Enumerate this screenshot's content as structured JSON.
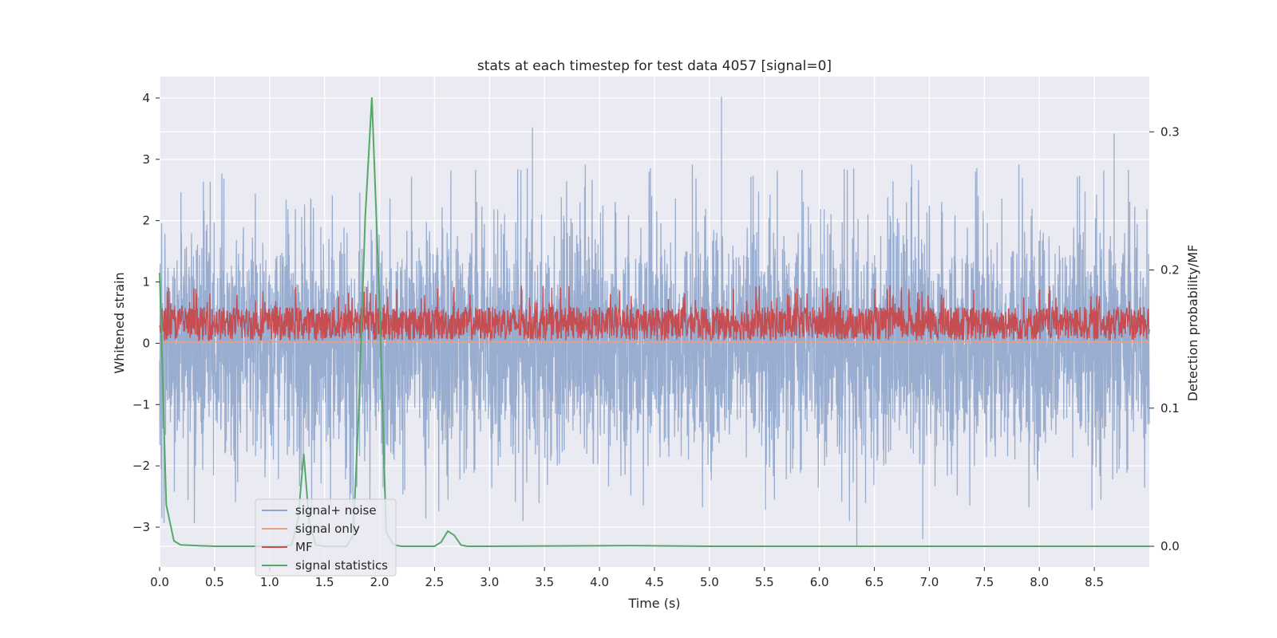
{
  "chart_data": {
    "type": "line",
    "title": "stats at each timestep for test data 4057 [signal=0]",
    "xlabel": "Time (s)",
    "ylabel": "Whitened strain",
    "y2label": "Detection probability/MF",
    "xlim": [
      0.0,
      9.0
    ],
    "ylim": [
      -3.65,
      4.35
    ],
    "y2lim": [
      -0.015,
      0.34
    ],
    "xticks": [
      0.0,
      0.5,
      1.0,
      1.5,
      2.0,
      2.5,
      3.0,
      3.5,
      4.0,
      4.5,
      5.0,
      5.5,
      6.0,
      6.5,
      7.0,
      7.5,
      8.0,
      8.5
    ],
    "xtick_labels": [
      "0.0",
      "0.5",
      "1.0",
      "1.5",
      "2.0",
      "2.5",
      "3.0",
      "3.5",
      "4.0",
      "4.5",
      "5.0",
      "5.5",
      "6.0",
      "6.5",
      "7.0",
      "7.5",
      "8.0",
      "8.5"
    ],
    "yticks": [
      -3,
      -2,
      -1,
      0,
      1,
      2,
      3,
      4
    ],
    "ytick_labels": [
      "−3",
      "−2",
      "−1",
      "0",
      "1",
      "2",
      "3",
      "4"
    ],
    "y2ticks": [
      0.0,
      0.1,
      0.2,
      0.3
    ],
    "y2tick_labels": [
      "0.0",
      "0.1",
      "0.2",
      "0.3"
    ],
    "grid": true,
    "legend_position": "lower-left",
    "series": [
      {
        "name": "signal+ noise",
        "axis": "left",
        "color": "#8fa6cc",
        "description": "noisy whitened strain, about 9000 samples",
        "range": [
          -3.3,
          4.0
        ],
        "spikes": [
          {
            "x": 3.39,
            "y": 3.52
          },
          {
            "x": 5.11,
            "y": 4.02
          },
          {
            "x": 6.34,
            "y": -3.3
          },
          {
            "x": 6.94,
            "y": -3.2
          },
          {
            "x": 8.68,
            "y": 3.42
          },
          {
            "x": 0.02,
            "y": -2.85
          }
        ]
      },
      {
        "name": "signal only",
        "axis": "left",
        "color": "#e8a088",
        "x": [
          0.0,
          9.0
        ],
        "y": [
          0.02,
          0.02
        ]
      },
      {
        "name": "MF",
        "axis": "left",
        "color": "#c44e52",
        "description": "matched filter output fluctuating between about 0 and 1",
        "range": [
          0.0,
          1.0
        ]
      },
      {
        "name": "signal statistics",
        "axis": "right",
        "color": "#55a868",
        "x": [
          0.0,
          0.06,
          0.13,
          0.19,
          0.5,
          1.0,
          1.1,
          1.2,
          1.26,
          1.31,
          1.36,
          1.42,
          1.5,
          1.7,
          1.76,
          1.81,
          1.87,
          1.93,
          2.0,
          2.06,
          2.13,
          2.2,
          2.5,
          2.56,
          2.62,
          2.68,
          2.74,
          2.8,
          3.0,
          4.3,
          5.0,
          9.0
        ],
        "y": [
          0.198,
          0.03,
          0.004,
          0.001,
          0.0,
          0.0,
          0.0,
          0.001,
          0.02,
          0.067,
          0.018,
          0.001,
          0.0,
          0.0,
          0.008,
          0.097,
          0.238,
          0.325,
          0.175,
          0.01,
          0.001,
          0.0,
          0.0,
          0.003,
          0.011,
          0.008,
          0.001,
          0.0,
          0.0,
          0.0005,
          0.0,
          0.0
        ]
      }
    ]
  }
}
